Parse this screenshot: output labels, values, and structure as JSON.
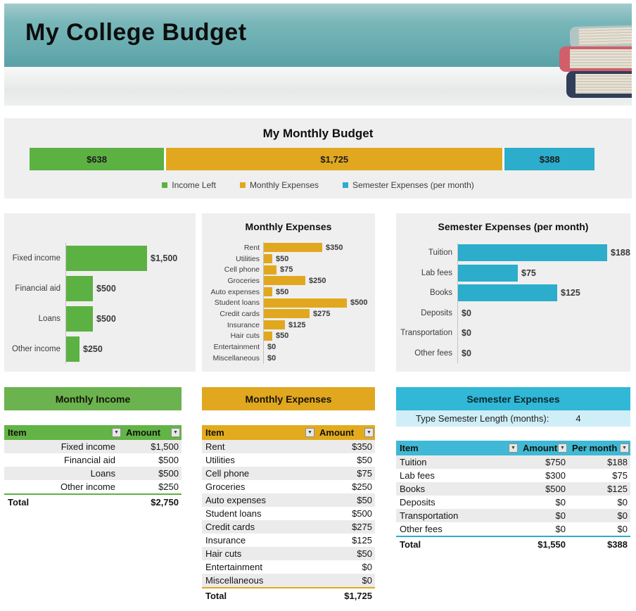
{
  "header": {
    "title": "My College Budget"
  },
  "icons": {
    "filter": "▼"
  },
  "colors": {
    "green": "#5cb143",
    "green_banner": "#6ab34e",
    "gold": "#e1a81f",
    "gold_banner": "#e0a71f",
    "blue": "#2badcb",
    "blue_banner": "#30b8d6",
    "blue_row": "#cfeef7"
  },
  "overview": {
    "title": "My Monthly Budget",
    "segments": [
      {
        "name": "Income Left",
        "label": "$638",
        "value": 638,
        "color": "#5cb143"
      },
      {
        "name": "Monthly Expenses",
        "label": "$1,725",
        "value": 1725,
        "color": "#e1a81f"
      },
      {
        "name": "Semester Expenses (per month)",
        "label": "$388",
        "value": 388,
        "color": "#2badcb"
      }
    ]
  },
  "chart_data": [
    {
      "type": "stacked-bar-horizontal",
      "title": "My Monthly Budget",
      "series": [
        {
          "name": "Income Left",
          "value": 638,
          "label": "$638",
          "color": "#5cb143"
        },
        {
          "name": "Monthly Expenses",
          "value": 1725,
          "label": "$1,725",
          "color": "#e1a81f"
        },
        {
          "name": "Semester Expenses (per month)",
          "value": 388,
          "label": "$388",
          "color": "#2badcb"
        }
      ],
      "legend_position": "bottom"
    },
    {
      "type": "bar-horizontal",
      "title": "",
      "categories": [
        "Fixed income",
        "Financial aid",
        "Loans",
        "Other income"
      ],
      "values": [
        1500,
        500,
        500,
        250
      ],
      "labels": [
        "$1,500",
        "$500",
        "$500",
        "$250"
      ],
      "max_value": 1500,
      "color": "#5cb143"
    },
    {
      "type": "bar-horizontal",
      "title": "Monthly Expenses",
      "categories": [
        "Rent",
        "Utilities",
        "Cell phone",
        "Groceries",
        "Auto expenses",
        "Student loans",
        "Credit cards",
        "Insurance",
        "Hair cuts",
        "Entertainment",
        "Miscellaneous"
      ],
      "values": [
        350,
        50,
        75,
        250,
        50,
        500,
        275,
        125,
        50,
        0,
        0
      ],
      "labels": [
        "$350",
        "$50",
        "$75",
        "$250",
        "$50",
        "$500",
        "$275",
        "$125",
        "$50",
        "$0",
        "$0"
      ],
      "max_value": 500,
      "color": "#e1a81f"
    },
    {
      "type": "bar-horizontal",
      "title": "Semester Expenses (per month)",
      "categories": [
        "Tuition",
        "Lab fees",
        "Books",
        "Deposits",
        "Transportation",
        "Other fees"
      ],
      "values": [
        188,
        75,
        125,
        0,
        0,
        0
      ],
      "labels": [
        "$188",
        "$75",
        "$125",
        "$0",
        "$0",
        "$0"
      ],
      "max_value": 188,
      "color": "#2badcb"
    }
  ],
  "tables": {
    "income": {
      "banner": "Monthly Income",
      "accent": "#5cb143",
      "header_bg": "#62b446",
      "columns": [
        {
          "label": "Item",
          "filter": true
        },
        {
          "label": "Amount",
          "filter": true
        }
      ],
      "rows": [
        [
          "Fixed income",
          "$1,500"
        ],
        [
          "Financial aid",
          "$500"
        ],
        [
          "Loans",
          "$500"
        ],
        [
          "Other income",
          "$250"
        ]
      ],
      "total": [
        "Total",
        "$2,750"
      ]
    },
    "expenses": {
      "banner": "Monthly Expenses",
      "accent": "#e1a81f",
      "header_bg": "#e2aa1d",
      "columns": [
        {
          "label": "Item",
          "filter": true
        },
        {
          "label": "Amount",
          "filter": true
        }
      ],
      "rows": [
        [
          "Rent",
          "$350"
        ],
        [
          "Utilities",
          "$50"
        ],
        [
          "Cell phone",
          "$75"
        ],
        [
          "Groceries",
          "$250"
        ],
        [
          "Auto expenses",
          "$50"
        ],
        [
          "Student loans",
          "$500"
        ],
        [
          "Credit cards",
          "$275"
        ],
        [
          "Insurance",
          "$125"
        ],
        [
          "Hair cuts",
          "$50"
        ],
        [
          "Entertainment",
          "$0"
        ],
        [
          "Miscellaneous",
          "$0"
        ]
      ],
      "total": [
        "Total",
        "$1,725"
      ]
    },
    "semester": {
      "banner": "Semester Expenses",
      "accent": "#2badcb",
      "header_bg": "#3fb9d6",
      "input_label": "Type Semester Length (months):",
      "input_value": "4",
      "columns": [
        {
          "label": "Item",
          "filter": true
        },
        {
          "label": "Amount",
          "filter": true
        },
        {
          "label": "Per month",
          "filter": true
        }
      ],
      "rows": [
        [
          "Tuition",
          "$750",
          "$188"
        ],
        [
          "Lab fees",
          "$300",
          "$75"
        ],
        [
          "Books",
          "$500",
          "$125"
        ],
        [
          "Deposits",
          "$0",
          "$0"
        ],
        [
          "Transportation",
          "$0",
          "$0"
        ],
        [
          "Other fees",
          "$0",
          "$0"
        ]
      ],
      "total": [
        "Total",
        "$1,550",
        "$388"
      ]
    }
  }
}
